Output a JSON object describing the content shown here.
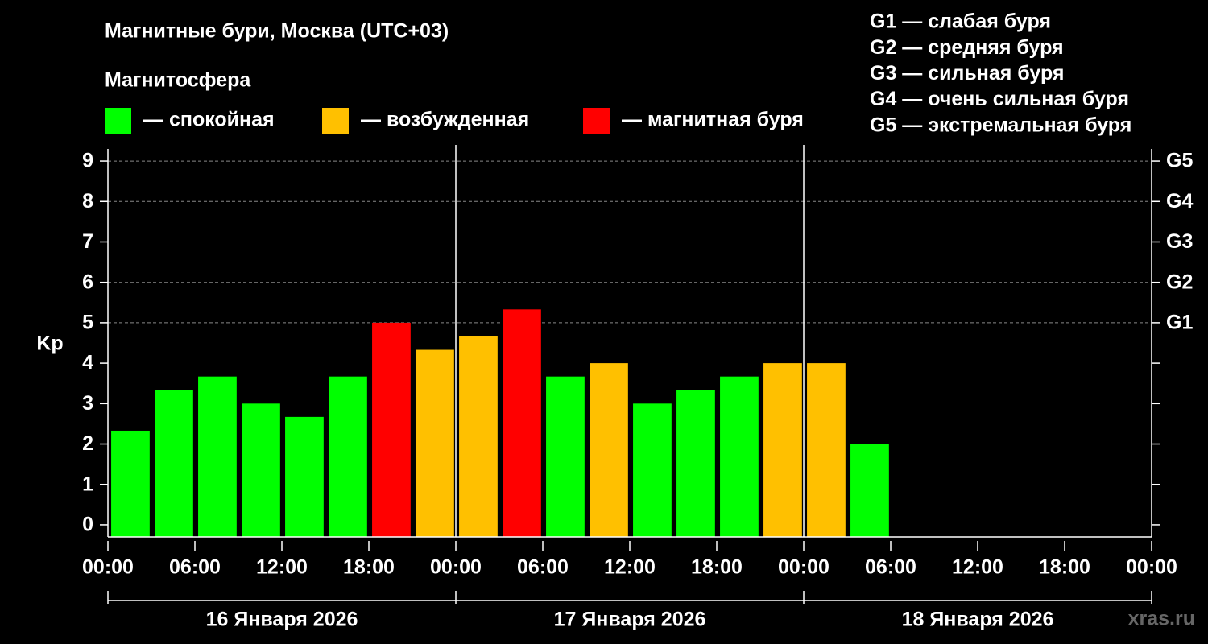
{
  "chart_data": {
    "type": "bar",
    "title": "Магнитные бури, Москва (UTC+03)",
    "subtitle": "Магнитосфера",
    "legend": [
      {
        "label": "— спокойная",
        "color": "#00ff00"
      },
      {
        "label": "— возбужденная",
        "color": "#ffc000"
      },
      {
        "label": "— магнитная буря",
        "color": "#ff0000"
      }
    ],
    "storm_scale": [
      "G1 — слабая буря",
      "G2 — средняя буря",
      "G3 — сильная буря",
      "G4 — очень сильная буря",
      "G5 — экстремальная буря"
    ],
    "y_label": "Kp",
    "x": [
      0,
      3,
      6,
      9,
      12,
      15,
      18,
      21,
      24,
      27,
      30,
      33,
      36,
      39,
      42,
      45,
      48,
      51
    ],
    "bar_width": 3,
    "values": [
      2.33,
      3.33,
      3.67,
      3,
      2.67,
      3.67,
      5,
      4.33,
      4.67,
      5.33,
      3.67,
      4,
      3,
      3.33,
      3.67,
      4,
      4,
      2
    ],
    "colors": [
      "#00ff00",
      "#00ff00",
      "#00ff00",
      "#00ff00",
      "#00ff00",
      "#00ff00",
      "#ff0000",
      "#ffc000",
      "#ffc000",
      "#ff0000",
      "#00ff00",
      "#ffc000",
      "#00ff00",
      "#00ff00",
      "#00ff00",
      "#ffc000",
      "#ffc000",
      "#00ff00"
    ],
    "xlim": [
      0,
      72
    ],
    "xticks": [
      {
        "value": 0,
        "label": "00:00"
      },
      {
        "value": 6,
        "label": "06:00"
      },
      {
        "value": 12,
        "label": "12:00"
      },
      {
        "value": 18,
        "label": "18:00"
      },
      {
        "value": 24,
        "label": "00:00"
      },
      {
        "value": 30,
        "label": "06:00"
      },
      {
        "value": 36,
        "label": "12:00"
      },
      {
        "value": 42,
        "label": "18:00"
      },
      {
        "value": 48,
        "label": "00:00"
      },
      {
        "value": 54,
        "label": "06:00"
      },
      {
        "value": 60,
        "label": "12:00"
      },
      {
        "value": 66,
        "label": "18:00"
      },
      {
        "value": 72,
        "label": "00:00"
      }
    ],
    "days": [
      "16 Января 2026",
      "17 Января 2026",
      "18 Января 2026"
    ],
    "ylim": [
      -0.3,
      9.3
    ],
    "yticks": [
      0,
      1,
      2,
      3,
      4,
      5,
      6,
      7,
      8,
      9
    ],
    "y2lim": [
      -0.3,
      9.3
    ],
    "y2ticks": [
      {
        "value": 5,
        "label": "G1"
      },
      {
        "value": 6,
        "label": "G2"
      },
      {
        "value": 7,
        "label": "G3"
      },
      {
        "value": 8,
        "label": "G4"
      },
      {
        "value": 9,
        "label": "G5"
      }
    ],
    "grid": true,
    "watermark": "xras.ru"
  }
}
